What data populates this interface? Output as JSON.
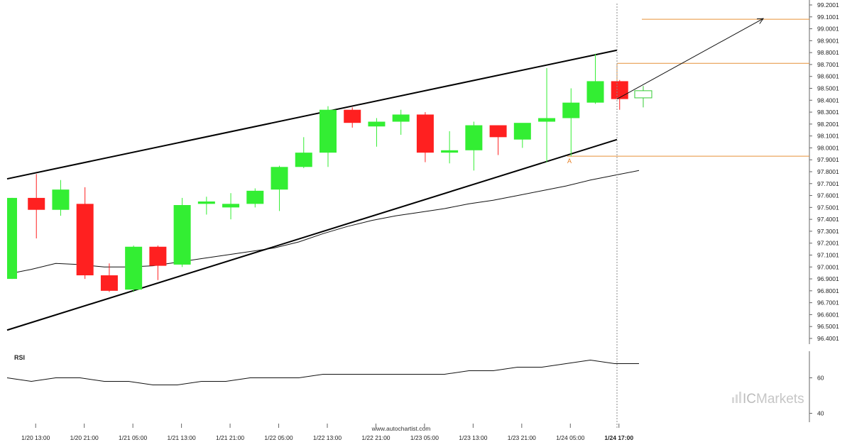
{
  "chart_data": [
    {
      "type": "candlestick",
      "title": "",
      "x_tick_labels": [
        "1/20 13:00",
        "1/20 21:00",
        "1/21 05:00",
        "1/21 13:00",
        "1/21 21:00",
        "1/22 05:00",
        "1/22 13:00",
        "1/22 21:00",
        "1/23 05:00",
        "1/23 13:00",
        "1/23 21:00",
        "1/24 05:00",
        "1/24 17:00"
      ],
      "current_time_label": "1/24 17:00",
      "y_tick_labels": [
        "99.2001",
        "99.1001",
        "99.0001",
        "98.9001",
        "98.8001",
        "98.7001",
        "98.6001",
        "98.5001",
        "98.4001",
        "98.3001",
        "98.2001",
        "98.1001",
        "98.0001",
        "97.9001",
        "97.8001",
        "97.7001",
        "97.6001",
        "97.5001",
        "97.4001",
        "97.3001",
        "97.2001",
        "97.1001",
        "97.0001",
        "96.9001",
        "96.8001",
        "96.7001",
        "96.6001",
        "96.5001",
        "96.4001"
      ],
      "ylim": [
        96.4,
        99.2
      ],
      "candles": [
        {
          "o": 96.9,
          "h": 97.58,
          "l": 96.9,
          "c": 97.58
        },
        {
          "o": 97.58,
          "h": 97.78,
          "l": 97.24,
          "c": 97.48
        },
        {
          "o": 97.48,
          "h": 97.73,
          "l": 97.43,
          "c": 97.65
        },
        {
          "o": 97.53,
          "h": 97.67,
          "l": 96.9,
          "c": 96.93
        },
        {
          "o": 96.93,
          "h": 97.03,
          "l": 96.79,
          "c": 96.8
        },
        {
          "o": 96.81,
          "h": 97.18,
          "l": 96.79,
          "c": 97.17
        },
        {
          "o": 97.17,
          "h": 97.18,
          "l": 96.89,
          "c": 97.01
        },
        {
          "o": 97.02,
          "h": 97.58,
          "l": 97.0,
          "c": 97.52
        },
        {
          "o": 97.53,
          "h": 97.59,
          "l": 97.44,
          "c": 97.55
        },
        {
          "o": 97.5,
          "h": 97.62,
          "l": 97.4,
          "c": 97.53
        },
        {
          "o": 97.53,
          "h": 97.66,
          "l": 97.5,
          "c": 97.64
        },
        {
          "o": 97.65,
          "h": 97.85,
          "l": 97.47,
          "c": 97.84
        },
        {
          "o": 97.84,
          "h": 98.09,
          "l": 97.83,
          "c": 97.96
        },
        {
          "o": 97.96,
          "h": 98.35,
          "l": 97.84,
          "c": 98.32
        },
        {
          "o": 98.32,
          "h": 98.34,
          "l": 98.17,
          "c": 98.21
        },
        {
          "o": 98.18,
          "h": 98.25,
          "l": 98.01,
          "c": 98.22
        },
        {
          "o": 98.22,
          "h": 98.32,
          "l": 98.11,
          "c": 98.28
        },
        {
          "o": 98.28,
          "h": 98.3,
          "l": 97.88,
          "c": 97.96
        },
        {
          "o": 97.96,
          "h": 98.14,
          "l": 97.87,
          "c": 97.98
        },
        {
          "o": 97.98,
          "h": 98.22,
          "l": 97.81,
          "c": 98.19
        },
        {
          "o": 98.19,
          "h": 98.19,
          "l": 97.94,
          "c": 98.09
        },
        {
          "o": 98.07,
          "h": 98.2,
          "l": 98.0,
          "c": 98.21
        },
        {
          "o": 98.22,
          "h": 98.67,
          "l": 97.88,
          "c": 98.25
        },
        {
          "o": 98.25,
          "h": 98.5,
          "l": 97.93,
          "c": 98.38
        },
        {
          "o": 98.38,
          "h": 98.79,
          "l": 98.37,
          "c": 98.56
        },
        {
          "o": 98.56,
          "h": 98.57,
          "l": 98.32,
          "c": 98.41
        }
      ],
      "projection_candle": {
        "o": 98.48,
        "h": 98.52,
        "l": 98.34,
        "c": 98.42
      },
      "ma_line": [
        96.94,
        96.98,
        97.03,
        97.02,
        97.0,
        97.0,
        97.01,
        97.04,
        97.07,
        97.1,
        97.13,
        97.16,
        97.21,
        97.28,
        97.34,
        97.39,
        97.43,
        97.46,
        97.49,
        97.53,
        97.56,
        97.6,
        97.64,
        97.68,
        97.73,
        97.77,
        97.81
      ],
      "channel": {
        "upper": [
          97.74,
          98.82
        ],
        "lower": [
          96.47,
          98.07
        ]
      },
      "levels": [
        99.08,
        98.71,
        97.93
      ],
      "arrow": {
        "from": 98.41,
        "to": 99.08
      },
      "point_label": "A",
      "up_color": "#33ee33",
      "down_color": "#ff2020",
      "level_color": "#e69138"
    },
    {
      "type": "line",
      "title": "RSI",
      "y_tick_labels": [
        "60",
        "40"
      ],
      "rsi_values": [
        60,
        58,
        60,
        60,
        58,
        58,
        56,
        56,
        58,
        58,
        60,
        60,
        60,
        62,
        62,
        62,
        62,
        62,
        62,
        64,
        64,
        66,
        66,
        68,
        70,
        68,
        68
      ],
      "ylim": [
        35,
        75
      ]
    }
  ],
  "watermark": "www.autochartist.com",
  "brand": {
    "prefix": "IC",
    "name": "Markets"
  }
}
